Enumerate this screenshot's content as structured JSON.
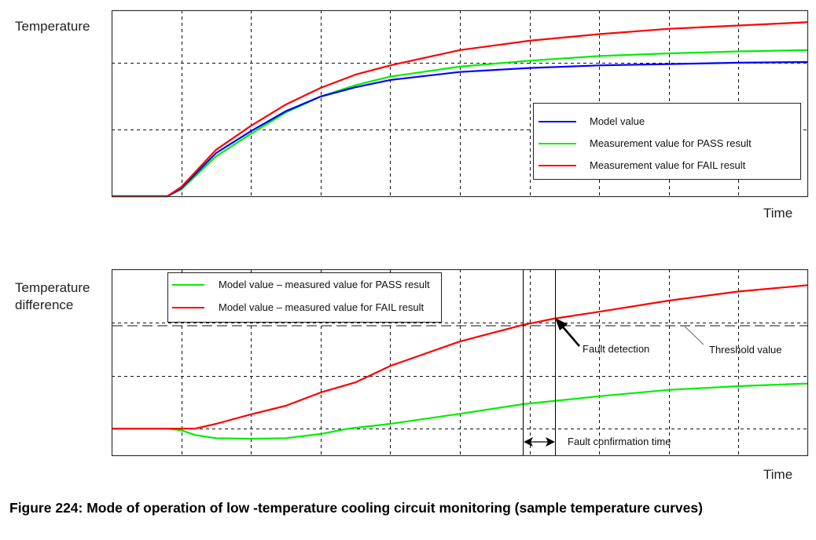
{
  "caption": "Figure 224: Mode of operation of low -temperature cooling circuit monitoring (sample temperature curves)",
  "colors": {
    "model": "#0000ff",
    "pass": "#00ee00",
    "fail": "#ff0000",
    "grid": "#000000"
  },
  "chart_data": [
    {
      "type": "line",
      "title": "",
      "ylabel": "Temperature",
      "xlabel": "Time",
      "grid": true,
      "xlim": [
        0,
        10
      ],
      "ylim": [
        0,
        2.8
      ],
      "legend_position": "bottom-right",
      "series": [
        {
          "name": "Model value",
          "color": "#0000ff",
          "x": [
            0,
            0.8,
            1.0,
            1.5,
            2.0,
            2.5,
            3.0,
            3.5,
            4.0,
            5.0,
            6.0,
            7.0,
            8.0,
            9.0,
            10.0
          ],
          "y": [
            0,
            0,
            0.12,
            0.65,
            0.98,
            1.28,
            1.5,
            1.64,
            1.75,
            1.87,
            1.93,
            1.97,
            1.99,
            2.01,
            2.02
          ]
        },
        {
          "name": "Measurement value for PASS result",
          "color": "#00ee00",
          "x": [
            0,
            0.8,
            1.0,
            1.5,
            2.0,
            2.5,
            3.0,
            3.5,
            4.0,
            5.0,
            6.0,
            7.0,
            8.0,
            9.0,
            10.0
          ],
          "y": [
            0,
            0,
            0.1,
            0.6,
            0.94,
            1.26,
            1.5,
            1.67,
            1.8,
            1.95,
            2.04,
            2.11,
            2.15,
            2.18,
            2.2
          ]
        },
        {
          "name": "Measurement value for FAIL result",
          "color": "#ff0000",
          "x": [
            0,
            0.8,
            1.0,
            1.5,
            2.0,
            2.5,
            3.0,
            3.5,
            4.0,
            5.0,
            6.0,
            7.0,
            8.0,
            9.0,
            10.0
          ],
          "y": [
            0,
            0,
            0.14,
            0.7,
            1.06,
            1.38,
            1.63,
            1.83,
            1.97,
            2.2,
            2.34,
            2.44,
            2.52,
            2.57,
            2.62
          ]
        }
      ],
      "legend": [
        "Model value",
        "Measurement value for PASS result",
        "Measurement value for FAIL result"
      ]
    },
    {
      "type": "line",
      "title": "",
      "ylabel": "Temperature difference",
      "xlabel": "Time",
      "grid": true,
      "xlim": [
        0,
        10
      ],
      "ylim": [
        -0.5,
        3.0
      ],
      "legend_position": "top-left",
      "series": [
        {
          "name": "Model value – measured value for PASS result",
          "color": "#00ee00",
          "x": [
            0,
            0.8,
            1.0,
            1.2,
            1.5,
            2.0,
            2.5,
            3.0,
            3.4,
            4.0,
            5.0,
            5.9,
            6.35,
            7.0,
            8.0,
            9.0,
            10.0
          ],
          "y": [
            0,
            0,
            -0.03,
            -0.12,
            -0.18,
            -0.19,
            -0.18,
            -0.1,
            0,
            0.09,
            0.28,
            0.46,
            0.52,
            0.61,
            0.73,
            0.8,
            0.85
          ]
        },
        {
          "name": "Model value – measured value for FAIL result",
          "color": "#ff0000",
          "x": [
            0,
            1.2,
            1.5,
            2.0,
            2.5,
            3.0,
            3.5,
            4.0,
            5.0,
            5.9,
            6.35,
            7.0,
            8.0,
            9.0,
            10.0
          ],
          "y": [
            0,
            0,
            0.09,
            0.27,
            0.43,
            0.68,
            0.87,
            1.18,
            1.64,
            1.95,
            2.07,
            2.2,
            2.41,
            2.58,
            2.7
          ]
        }
      ],
      "threshold": {
        "label": "Threshold value",
        "y": 1.94
      },
      "annotations": {
        "fault_detection": "Fault detection",
        "fault_confirmation_time": "Fault confirmation time",
        "threshold_crossing_x": 5.9,
        "fault_detection_x": 6.35
      },
      "legend": [
        "Model value – measured value for PASS result",
        "Model value – measured value for FAIL result"
      ]
    }
  ]
}
